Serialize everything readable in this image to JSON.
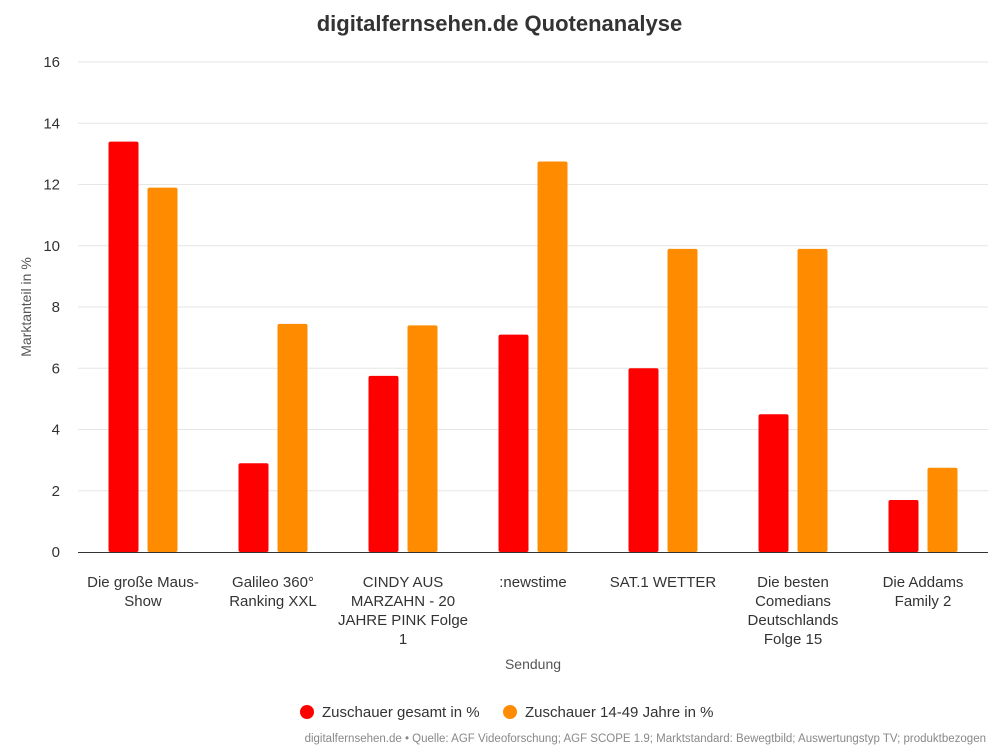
{
  "chart_data": {
    "type": "bar",
    "title": "digitalfernsehen.de Quotenanalyse",
    "xlabel": "Sendung",
    "ylabel": "Marktanteil in %",
    "ylim": [
      0,
      16
    ],
    "yticks": [
      0,
      2,
      4,
      6,
      8,
      10,
      12,
      14,
      16
    ],
    "grid": true,
    "legend_position": "bottom",
    "categories": [
      [
        "Die große Maus-",
        "Show"
      ],
      [
        "Galileo 360°",
        "Ranking XXL"
      ],
      [
        "CINDY AUS",
        "MARZAHN - 20",
        "JAHRE PINK Folge",
        "1"
      ],
      [
        ":newstime"
      ],
      [
        "SAT.1 WETTER"
      ],
      [
        "Die besten",
        "Comedians",
        "Deutschlands",
        "Folge 15"
      ],
      [
        "Die Addams",
        "Family 2"
      ]
    ],
    "series": [
      {
        "name": "Zuschauer gesamt in %",
        "color": "#ff0000",
        "values": [
          13.4,
          2.9,
          5.75,
          7.1,
          6.0,
          4.5,
          1.7
        ]
      },
      {
        "name": "Zuschauer 14-49 Jahre in %",
        "color": "#ff8c00",
        "values": [
          11.9,
          7.45,
          7.4,
          12.75,
          9.9,
          9.9,
          2.75
        ]
      }
    ],
    "source": "digitalfernsehen.de • Quelle: AGF Videoforschung; AGF SCOPE 1.9; Marktstandard: Bewegtbild; Auswertungstyp TV; produktbezogen"
  }
}
